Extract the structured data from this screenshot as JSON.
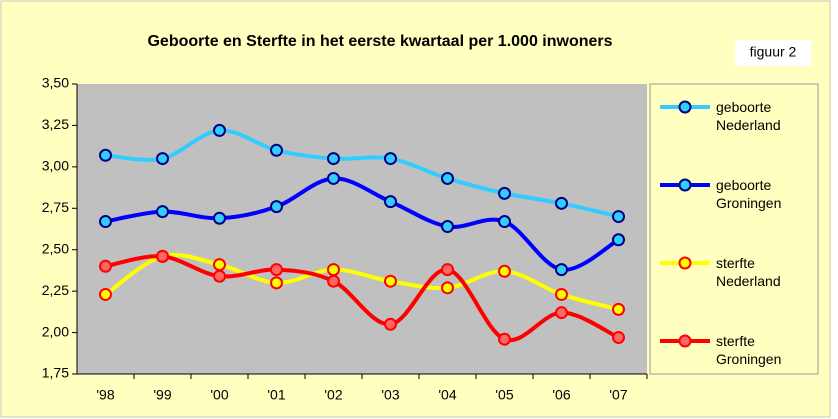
{
  "chart_data": {
    "type": "line",
    "title": "Geboorte en Sterfte in het eerste kwartaal per 1.000 inwoners",
    "annotation": "figuur 2",
    "categories": [
      "'98",
      "'99",
      "'00",
      "'01",
      "'02",
      "'03",
      "'04",
      "'05",
      "'06",
      "'07"
    ],
    "series": [
      {
        "name": "geboorte Nederland",
        "color": "#33ccff",
        "marker_fill": "#33ccff",
        "marker_edge": "#000080",
        "values": [
          3.07,
          3.05,
          3.22,
          3.1,
          3.05,
          3.05,
          2.93,
          2.84,
          2.78,
          2.7
        ]
      },
      {
        "name": "geboorte Groningen",
        "color": "#0000ff",
        "marker_fill": "#33ccff",
        "marker_edge": "#000080",
        "values": [
          2.67,
          2.73,
          2.69,
          2.76,
          2.93,
          2.79,
          2.64,
          2.67,
          2.38,
          2.56
        ]
      },
      {
        "name": "sterfte Nederland",
        "color": "#ffff00",
        "marker_fill": "#ffff00",
        "marker_edge": "#ff0000",
        "values": [
          2.23,
          2.46,
          2.41,
          2.3,
          2.38,
          2.31,
          2.27,
          2.37,
          2.23,
          2.14
        ]
      },
      {
        "name": "sterfte Groningen",
        "color": "#ff0000",
        "marker_fill": "#ff6666",
        "marker_edge": "#ff0000",
        "values": [
          2.4,
          2.46,
          2.34,
          2.38,
          2.31,
          2.05,
          2.38,
          1.96,
          2.12,
          1.97
        ]
      }
    ],
    "ylim": [
      1.75,
      3.5
    ],
    "yticks": [
      {
        "value": 1.75,
        "label": "1,75"
      },
      {
        "value": 2.0,
        "label": "2,00"
      },
      {
        "value": 2.25,
        "label": "2,25"
      },
      {
        "value": 2.5,
        "label": "2,50"
      },
      {
        "value": 2.75,
        "label": "2,75"
      },
      {
        "value": 3.0,
        "label": "3,00"
      },
      {
        "value": 3.25,
        "label": "3,25"
      },
      {
        "value": 3.5,
        "label": "3,50"
      }
    ],
    "grid": false,
    "legend": "right",
    "smooth": true
  }
}
